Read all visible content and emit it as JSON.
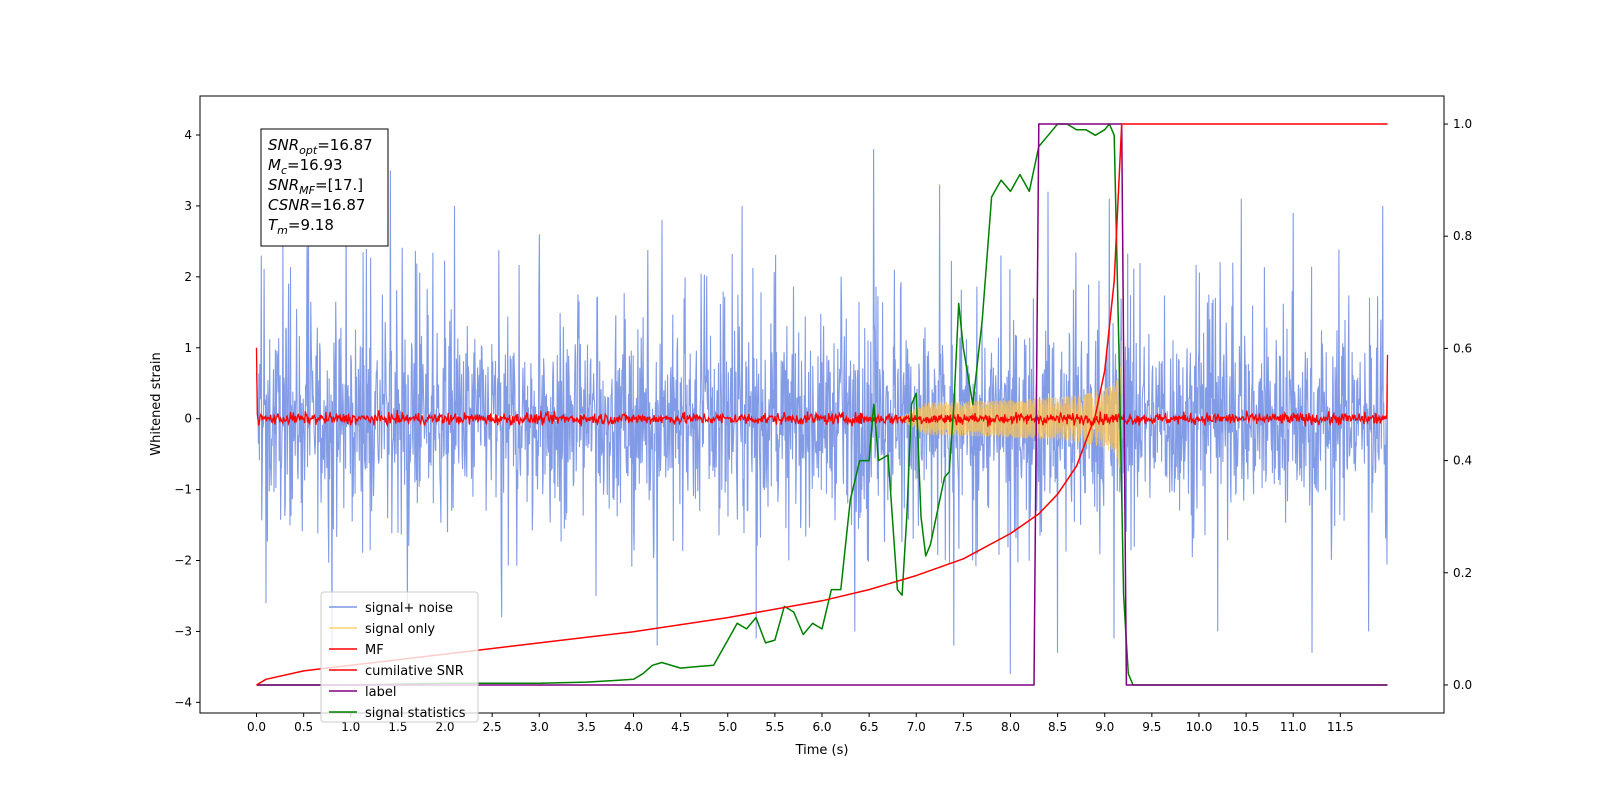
{
  "chart_data": {
    "type": "line",
    "xlabel": "Time (s)",
    "ylabel": "Whitened strain",
    "xlim": [
      -0.6,
      12.6
    ],
    "ylim": [
      -4.15,
      4.55
    ],
    "ylim_right": [
      -0.05,
      1.05
    ],
    "xticks": [
      0.0,
      0.5,
      1.0,
      1.5,
      2.0,
      2.5,
      3.0,
      3.5,
      4.0,
      4.5,
      5.0,
      5.5,
      6.0,
      6.5,
      7.0,
      7.5,
      8.0,
      8.5,
      9.0,
      9.5,
      10.0,
      10.5,
      11.0,
      11.5
    ],
    "xtick_labels": [
      "0.0",
      "0.5",
      "1.0",
      "1.5",
      "2.0",
      "2.5",
      "3.0",
      "3.5",
      "4.0",
      "4.5",
      "5.0",
      "5.5",
      "6.0",
      "6.5",
      "7.0",
      "7.5",
      "8.0",
      "8.5",
      "9.0",
      "9.5",
      "10.0",
      "10.5",
      "11.0",
      "11.5"
    ],
    "yticks_left": [
      4,
      3,
      2,
      1,
      0,
      -1,
      -2,
      -3,
      -4
    ],
    "ytick_labels_left": [
      "4",
      "3",
      "2",
      "1",
      "0",
      "−1",
      "−2",
      "−3",
      "−4"
    ],
    "yticks_right": [
      1.0,
      0.8,
      0.6,
      0.4,
      0.2,
      0.0
    ],
    "ytick_labels_right": [
      "1.0",
      "0.8",
      "0.6",
      "0.4",
      "0.2",
      "0.0"
    ],
    "grid": false,
    "legend_position": "lower-left",
    "legend": [
      {
        "label": "signal+ noise",
        "color": "#7b96e6"
      },
      {
        "label": "signal only",
        "color": "#ffc44d"
      },
      {
        "label": "MF",
        "color": "#ff0000"
      },
      {
        "label": "cumilative SNR",
        "color": "#ff0000"
      },
      {
        "label": "label",
        "color": "#800080"
      },
      {
        "label": "signal statistics",
        "color": "#008000"
      }
    ],
    "annotation_lines": [
      {
        "var": "SNR",
        "sub": "opt",
        "value": "=16.87"
      },
      {
        "var": "M",
        "sub": "c",
        "value": "=16.93"
      },
      {
        "var": "SNR",
        "sub": "MF",
        "value": "=[17.]"
      },
      {
        "var": "CSNR",
        "sub": "",
        "value": "=16.87"
      },
      {
        "var": "T",
        "sub": "m",
        "value": "=9.18"
      }
    ],
    "series": [
      {
        "name": "signal+ noise",
        "axis": "left",
        "color": "#7b96e6",
        "description_kind": "noise",
        "t_range": [
          0.0,
          12.0
        ],
        "typical_envelope": [
          -1.9,
          2.2
        ],
        "spikes": [
          [
            0.05,
            2.3
          ],
          [
            0.28,
            2.5
          ],
          [
            0.55,
            3.3
          ],
          [
            0.95,
            3.0
          ],
          [
            1.42,
            3.5
          ],
          [
            2.1,
            3.0
          ],
          [
            3.0,
            2.6
          ],
          [
            4.3,
            2.8
          ],
          [
            5.15,
            3.0
          ],
          [
            6.55,
            3.8
          ],
          [
            7.25,
            3.3
          ],
          [
            8.4,
            3.2
          ],
          [
            9.05,
            3.1
          ],
          [
            10.45,
            3.1
          ],
          [
            11.0,
            2.9
          ],
          [
            11.95,
            3.0
          ],
          [
            0.1,
            -2.6
          ],
          [
            0.8,
            -3.3
          ],
          [
            1.6,
            -2.7
          ],
          [
            2.6,
            -2.8
          ],
          [
            3.6,
            -2.5
          ],
          [
            4.25,
            -3.2
          ],
          [
            5.3,
            -3.1
          ],
          [
            6.35,
            -3.0
          ],
          [
            7.4,
            -3.2
          ],
          [
            8.0,
            -3.6
          ],
          [
            8.5,
            -3.3
          ],
          [
            9.1,
            -3.1
          ],
          [
            10.2,
            -3.0
          ],
          [
            11.2,
            -3.3
          ],
          [
            11.8,
            -3.0
          ]
        ]
      },
      {
        "name": "signal only",
        "axis": "left",
        "color": "#ffc44d",
        "description_kind": "chirp",
        "t_start": 6.8,
        "t_merge": 9.18,
        "peak_amplitude": 1.1
      },
      {
        "name": "MF",
        "axis": "left",
        "color": "#ff0000",
        "description_kind": "noise",
        "t_range": [
          0.0,
          12.0
        ],
        "amplitude": 0.07,
        "edge_values": [
          [
            0.0,
            1.0
          ],
          [
            12.0,
            0.9
          ]
        ]
      },
      {
        "name": "cumilative SNR",
        "axis": "right",
        "color": "#ff0000",
        "x": [
          0.0,
          0.1,
          0.5,
          1.0,
          2.0,
          3.0,
          4.0,
          5.0,
          6.0,
          6.5,
          7.0,
          7.5,
          8.0,
          8.3,
          8.5,
          8.7,
          8.9,
          9.0,
          9.1,
          9.18,
          12.0
        ],
        "y": [
          0.0,
          0.01,
          0.025,
          0.035,
          0.055,
          0.075,
          0.095,
          0.12,
          0.15,
          0.17,
          0.195,
          0.225,
          0.27,
          0.305,
          0.34,
          0.39,
          0.48,
          0.56,
          0.72,
          1.0,
          1.0
        ]
      },
      {
        "name": "label",
        "axis": "right",
        "color": "#800080",
        "x": [
          0.0,
          8.25,
          8.3,
          9.18,
          9.23,
          12.0
        ],
        "y": [
          0.0,
          0.0,
          1.0,
          1.0,
          0.0,
          0.0
        ]
      },
      {
        "name": "signal statistics",
        "axis": "right",
        "color": "#008000",
        "x": [
          0.0,
          1.0,
          2.0,
          3.0,
          3.5,
          3.8,
          4.0,
          4.1,
          4.2,
          4.3,
          4.5,
          4.7,
          4.85,
          5.0,
          5.1,
          5.2,
          5.3,
          5.4,
          5.5,
          5.6,
          5.7,
          5.8,
          5.9,
          6.0,
          6.1,
          6.2,
          6.3,
          6.4,
          6.5,
          6.55,
          6.6,
          6.7,
          6.8,
          6.85,
          6.9,
          6.95,
          7.0,
          7.05,
          7.1,
          7.15,
          7.2,
          7.3,
          7.35,
          7.4,
          7.45,
          7.5,
          7.55,
          7.6,
          7.7,
          7.8,
          7.9,
          8.0,
          8.1,
          8.2,
          8.3,
          8.4,
          8.5,
          8.6,
          8.7,
          8.8,
          8.9,
          9.0,
          9.05,
          9.1,
          9.15,
          9.2,
          9.25,
          9.3,
          10.0,
          11.0,
          12.0
        ],
        "y": [
          0.0,
          0.0,
          0.003,
          0.003,
          0.005,
          0.008,
          0.01,
          0.02,
          0.035,
          0.04,
          0.03,
          0.033,
          0.035,
          0.08,
          0.11,
          0.1,
          0.12,
          0.075,
          0.08,
          0.14,
          0.13,
          0.09,
          0.11,
          0.1,
          0.17,
          0.17,
          0.33,
          0.4,
          0.4,
          0.5,
          0.4,
          0.41,
          0.17,
          0.16,
          0.3,
          0.5,
          0.52,
          0.3,
          0.23,
          0.25,
          0.29,
          0.37,
          0.38,
          0.5,
          0.68,
          0.6,
          0.55,
          0.5,
          0.65,
          0.87,
          0.9,
          0.88,
          0.91,
          0.88,
          0.96,
          0.98,
          1.0,
          1.0,
          0.99,
          0.99,
          0.98,
          0.99,
          1.0,
          0.98,
          0.6,
          0.16,
          0.02,
          0.0,
          0.0,
          0.0,
          0.0
        ]
      }
    ]
  }
}
